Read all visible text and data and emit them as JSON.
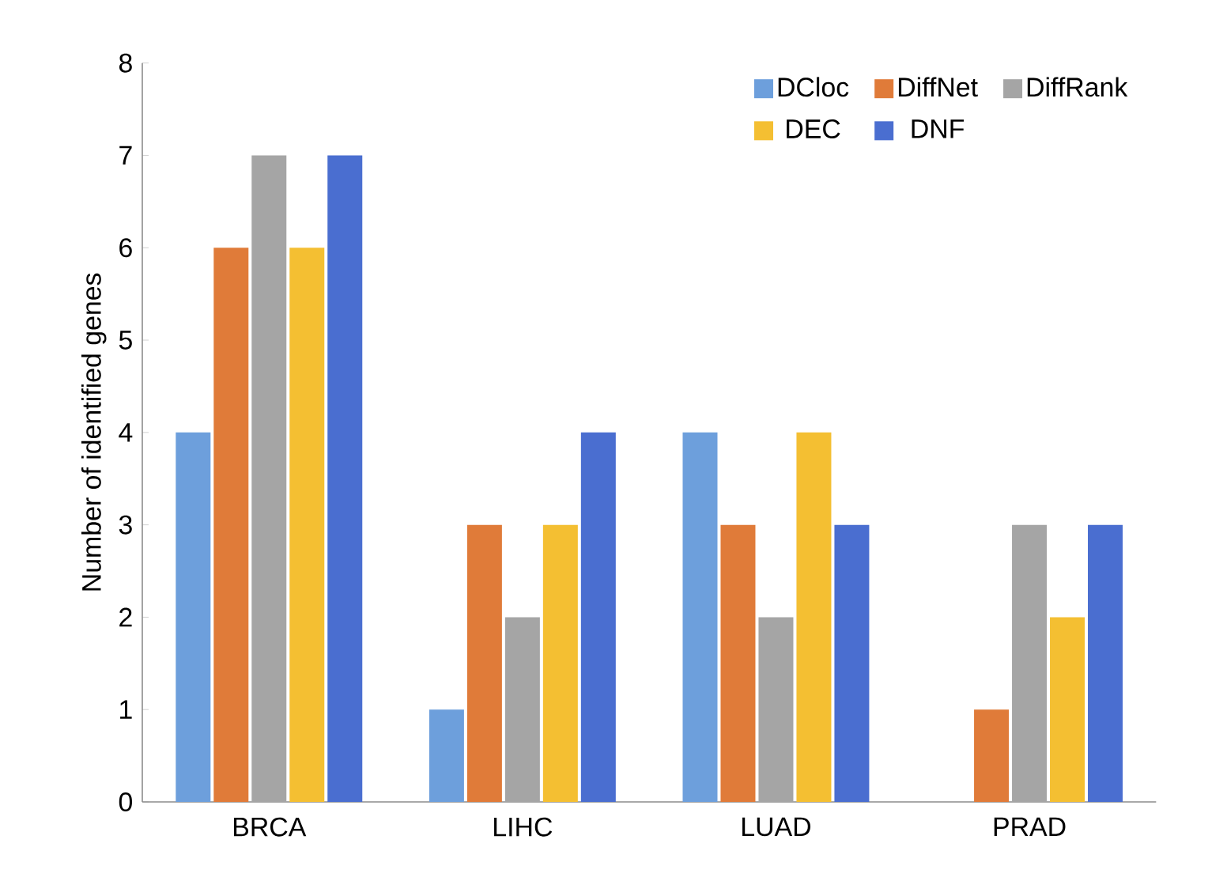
{
  "chart_data": {
    "type": "bar",
    "ylabel": "Number of identified genes",
    "categories": [
      "BRCA",
      "LIHC",
      "LUAD",
      "PRAD"
    ],
    "series": [
      {
        "name": "DCloc",
        "color": "#6d9fdc",
        "values": [
          4,
          1,
          4,
          0
        ]
      },
      {
        "name": "DiffNet",
        "color": "#e07b39",
        "values": [
          6,
          3,
          3,
          1
        ]
      },
      {
        "name": "DiffRank",
        "color": "#a5a5a5",
        "values": [
          7,
          2,
          2,
          3
        ]
      },
      {
        "name": "DEC",
        "color": "#f4bf32",
        "values": [
          6,
          3,
          4,
          2
        ]
      },
      {
        "name": "DNF",
        "color": "#4a6ed0",
        "values": [
          7,
          4,
          3,
          3
        ]
      }
    ],
    "ylim": [
      0,
      8
    ],
    "yticks": [
      0,
      1,
      2,
      3,
      4,
      5,
      6,
      7,
      8
    ],
    "grid": false,
    "legend": "top right"
  }
}
